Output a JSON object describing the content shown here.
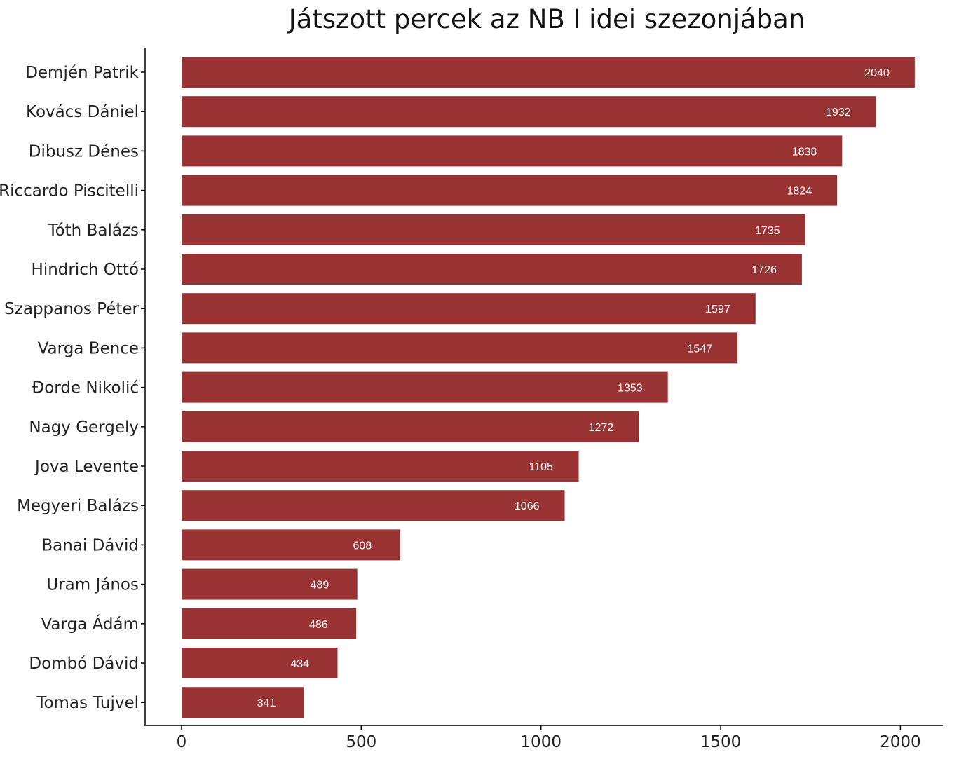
{
  "chart_data": {
    "type": "bar",
    "orientation": "horizontal",
    "title": "Játszott percek az NB I idei szezonjában",
    "categories": [
      "Demjén Patrik",
      "Kovács Dániel",
      "Dibusz Dénes",
      "Riccardo Piscitelli",
      "Tóth Balázs",
      "Hindrich Ottó",
      "Szappanos Péter",
      "Varga Bence",
      "Đorde Nikolić",
      "Nagy Gergely",
      "Jova Levente",
      "Megyeri Balázs",
      "Banai Dávid",
      "Uram János",
      "Varga Ádám",
      "Dombó Dávid",
      "Tomas Tujvel"
    ],
    "values": [
      2040,
      1932,
      1838,
      1824,
      1735,
      1726,
      1597,
      1547,
      1353,
      1272,
      1105,
      1066,
      608,
      489,
      486,
      434,
      341
    ],
    "value_labels": [
      "2040",
      "1932",
      "1838",
      "1824",
      "1735",
      "1726",
      "1597",
      "1547",
      "1353",
      "1272",
      "1105",
      "1066",
      "608",
      "489",
      "486",
      "434",
      "341"
    ],
    "xticks": [
      0,
      500,
      1000,
      1500,
      2000
    ],
    "xtick_labels": [
      "0",
      "500",
      "1000",
      "1500",
      "2000"
    ],
    "xlim": [
      0,
      2040
    ],
    "grid": false,
    "legend": "none",
    "bar_color": "#993333",
    "value_label_color": "#ffffff"
  }
}
